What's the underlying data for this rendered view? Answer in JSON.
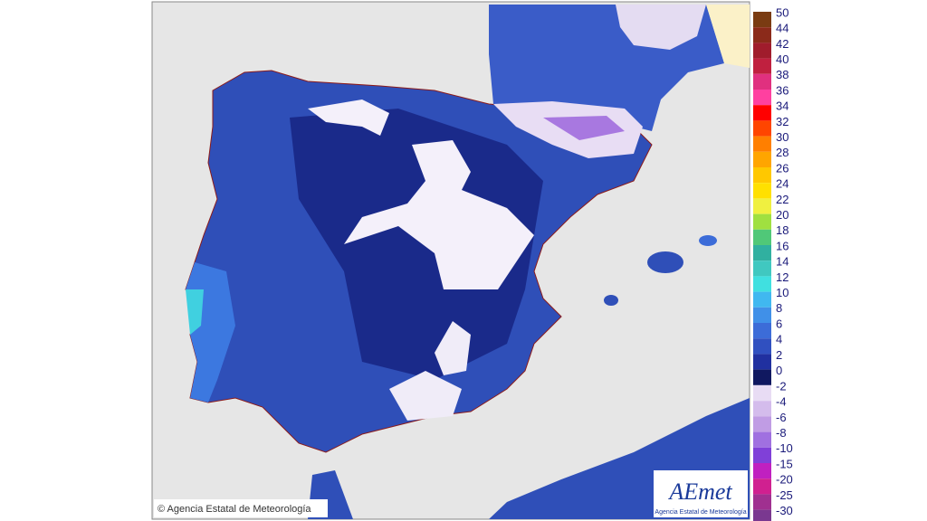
{
  "map": {
    "credit": "© Agencia Estatal de Meteorología",
    "logo": {
      "name": "AEmet",
      "subtitle": "Agencia Estatal de Meteorología"
    },
    "legend": {
      "upper": [
        {
          "label": "50",
          "color": "#7a3b12"
        },
        {
          "label": "44",
          "color": "#8b2a1a"
        },
        {
          "label": "42",
          "color": "#a01c2c"
        },
        {
          "label": "40",
          "color": "#c0203f"
        },
        {
          "label": "38",
          "color": "#e0307f"
        },
        {
          "label": "36",
          "color": "#ff40a0"
        },
        {
          "label": "34",
          "color": "#ff0000"
        },
        {
          "label": "32",
          "color": "#ff4500"
        },
        {
          "label": "30",
          "color": "#ff7f00"
        },
        {
          "label": "28",
          "color": "#ffa500"
        },
        {
          "label": "26",
          "color": "#ffc800"
        },
        {
          "label": "24",
          "color": "#ffe000"
        },
        {
          "label": "22",
          "color": "#f0f040"
        },
        {
          "label": "20",
          "color": "#a0e040"
        },
        {
          "label": "18",
          "color": "#50c878"
        },
        {
          "label": "16",
          "color": "#30b0a0"
        },
        {
          "label": "14",
          "color": "#40c8c0"
        },
        {
          "label": "12",
          "color": "#40e0e0"
        },
        {
          "label": "10",
          "color": "#40b8f0"
        },
        {
          "label": "8",
          "color": "#4090e8"
        },
        {
          "label": "6",
          "color": "#3c6cd8"
        },
        {
          "label": "4",
          "color": "#3050c0"
        },
        {
          "label": "2",
          "color": "#2030a0"
        },
        {
          "label": "0",
          "color": "#101860"
        }
      ],
      "lower": [
        {
          "label": "-2",
          "color": "#e8dcf4"
        },
        {
          "label": "-4",
          "color": "#d4bcec"
        },
        {
          "label": "-6",
          "color": "#c09ce4"
        },
        {
          "label": "-8",
          "color": "#a070e0"
        },
        {
          "label": "-10",
          "color": "#8040d8"
        },
        {
          "label": "-15",
          "color": "#c020c0"
        },
        {
          "label": "-20",
          "color": "#d02090"
        },
        {
          "label": "-25",
          "color": "#a03090"
        },
        {
          "label": "-30",
          "color": "#7a3890"
        }
      ]
    }
  }
}
